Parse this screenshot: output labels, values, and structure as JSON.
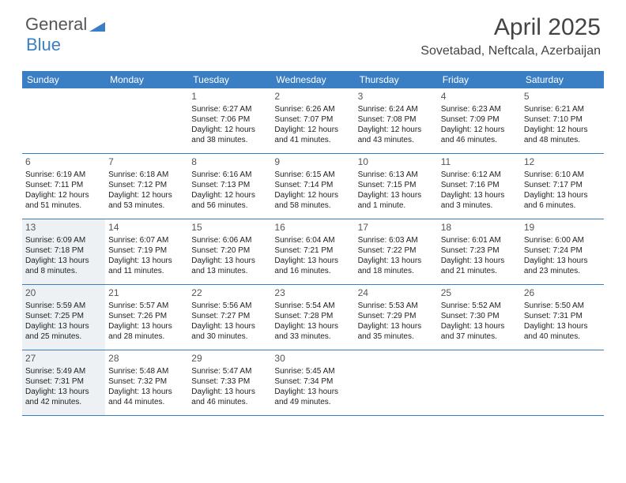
{
  "brand": {
    "part1": "General",
    "part2": "Blue"
  },
  "title": "April 2025",
  "location": "Sovetabad, Neftcala, Azerbaijan",
  "colors": {
    "header_bar": "#3a7fc4",
    "highlight_bg": "#eef1f3",
    "text": "#333333",
    "white": "#ffffff"
  },
  "weekdays": [
    "Sunday",
    "Monday",
    "Tuesday",
    "Wednesday",
    "Thursday",
    "Friday",
    "Saturday"
  ],
  "weeks": [
    [
      {
        "num": "",
        "sunrise": "",
        "sunset": "",
        "daylight": ""
      },
      {
        "num": "",
        "sunrise": "",
        "sunset": "",
        "daylight": ""
      },
      {
        "num": "1",
        "sunrise": "Sunrise: 6:27 AM",
        "sunset": "Sunset: 7:06 PM",
        "daylight": "Daylight: 12 hours and 38 minutes."
      },
      {
        "num": "2",
        "sunrise": "Sunrise: 6:26 AM",
        "sunset": "Sunset: 7:07 PM",
        "daylight": "Daylight: 12 hours and 41 minutes."
      },
      {
        "num": "3",
        "sunrise": "Sunrise: 6:24 AM",
        "sunset": "Sunset: 7:08 PM",
        "daylight": "Daylight: 12 hours and 43 minutes."
      },
      {
        "num": "4",
        "sunrise": "Sunrise: 6:23 AM",
        "sunset": "Sunset: 7:09 PM",
        "daylight": "Daylight: 12 hours and 46 minutes."
      },
      {
        "num": "5",
        "sunrise": "Sunrise: 6:21 AM",
        "sunset": "Sunset: 7:10 PM",
        "daylight": "Daylight: 12 hours and 48 minutes."
      }
    ],
    [
      {
        "num": "6",
        "sunrise": "Sunrise: 6:19 AM",
        "sunset": "Sunset: 7:11 PM",
        "daylight": "Daylight: 12 hours and 51 minutes."
      },
      {
        "num": "7",
        "sunrise": "Sunrise: 6:18 AM",
        "sunset": "Sunset: 7:12 PM",
        "daylight": "Daylight: 12 hours and 53 minutes."
      },
      {
        "num": "8",
        "sunrise": "Sunrise: 6:16 AM",
        "sunset": "Sunset: 7:13 PM",
        "daylight": "Daylight: 12 hours and 56 minutes."
      },
      {
        "num": "9",
        "sunrise": "Sunrise: 6:15 AM",
        "sunset": "Sunset: 7:14 PM",
        "daylight": "Daylight: 12 hours and 58 minutes."
      },
      {
        "num": "10",
        "sunrise": "Sunrise: 6:13 AM",
        "sunset": "Sunset: 7:15 PM",
        "daylight": "Daylight: 13 hours and 1 minute."
      },
      {
        "num": "11",
        "sunrise": "Sunrise: 6:12 AM",
        "sunset": "Sunset: 7:16 PM",
        "daylight": "Daylight: 13 hours and 3 minutes."
      },
      {
        "num": "12",
        "sunrise": "Sunrise: 6:10 AM",
        "sunset": "Sunset: 7:17 PM",
        "daylight": "Daylight: 13 hours and 6 minutes."
      }
    ],
    [
      {
        "num": "13",
        "sunrise": "Sunrise: 6:09 AM",
        "sunset": "Sunset: 7:18 PM",
        "daylight": "Daylight: 13 hours and 8 minutes.",
        "highlight": true
      },
      {
        "num": "14",
        "sunrise": "Sunrise: 6:07 AM",
        "sunset": "Sunset: 7:19 PM",
        "daylight": "Daylight: 13 hours and 11 minutes."
      },
      {
        "num": "15",
        "sunrise": "Sunrise: 6:06 AM",
        "sunset": "Sunset: 7:20 PM",
        "daylight": "Daylight: 13 hours and 13 minutes."
      },
      {
        "num": "16",
        "sunrise": "Sunrise: 6:04 AM",
        "sunset": "Sunset: 7:21 PM",
        "daylight": "Daylight: 13 hours and 16 minutes."
      },
      {
        "num": "17",
        "sunrise": "Sunrise: 6:03 AM",
        "sunset": "Sunset: 7:22 PM",
        "daylight": "Daylight: 13 hours and 18 minutes."
      },
      {
        "num": "18",
        "sunrise": "Sunrise: 6:01 AM",
        "sunset": "Sunset: 7:23 PM",
        "daylight": "Daylight: 13 hours and 21 minutes."
      },
      {
        "num": "19",
        "sunrise": "Sunrise: 6:00 AM",
        "sunset": "Sunset: 7:24 PM",
        "daylight": "Daylight: 13 hours and 23 minutes."
      }
    ],
    [
      {
        "num": "20",
        "sunrise": "Sunrise: 5:59 AM",
        "sunset": "Sunset: 7:25 PM",
        "daylight": "Daylight: 13 hours and 25 minutes.",
        "highlight": true
      },
      {
        "num": "21",
        "sunrise": "Sunrise: 5:57 AM",
        "sunset": "Sunset: 7:26 PM",
        "daylight": "Daylight: 13 hours and 28 minutes."
      },
      {
        "num": "22",
        "sunrise": "Sunrise: 5:56 AM",
        "sunset": "Sunset: 7:27 PM",
        "daylight": "Daylight: 13 hours and 30 minutes."
      },
      {
        "num": "23",
        "sunrise": "Sunrise: 5:54 AM",
        "sunset": "Sunset: 7:28 PM",
        "daylight": "Daylight: 13 hours and 33 minutes."
      },
      {
        "num": "24",
        "sunrise": "Sunrise: 5:53 AM",
        "sunset": "Sunset: 7:29 PM",
        "daylight": "Daylight: 13 hours and 35 minutes."
      },
      {
        "num": "25",
        "sunrise": "Sunrise: 5:52 AM",
        "sunset": "Sunset: 7:30 PM",
        "daylight": "Daylight: 13 hours and 37 minutes."
      },
      {
        "num": "26",
        "sunrise": "Sunrise: 5:50 AM",
        "sunset": "Sunset: 7:31 PM",
        "daylight": "Daylight: 13 hours and 40 minutes."
      }
    ],
    [
      {
        "num": "27",
        "sunrise": "Sunrise: 5:49 AM",
        "sunset": "Sunset: 7:31 PM",
        "daylight": "Daylight: 13 hours and 42 minutes.",
        "highlight": true
      },
      {
        "num": "28",
        "sunrise": "Sunrise: 5:48 AM",
        "sunset": "Sunset: 7:32 PM",
        "daylight": "Daylight: 13 hours and 44 minutes."
      },
      {
        "num": "29",
        "sunrise": "Sunrise: 5:47 AM",
        "sunset": "Sunset: 7:33 PM",
        "daylight": "Daylight: 13 hours and 46 minutes."
      },
      {
        "num": "30",
        "sunrise": "Sunrise: 5:45 AM",
        "sunset": "Sunset: 7:34 PM",
        "daylight": "Daylight: 13 hours and 49 minutes."
      },
      {
        "num": "",
        "sunrise": "",
        "sunset": "",
        "daylight": ""
      },
      {
        "num": "",
        "sunrise": "",
        "sunset": "",
        "daylight": ""
      },
      {
        "num": "",
        "sunrise": "",
        "sunset": "",
        "daylight": ""
      }
    ]
  ]
}
